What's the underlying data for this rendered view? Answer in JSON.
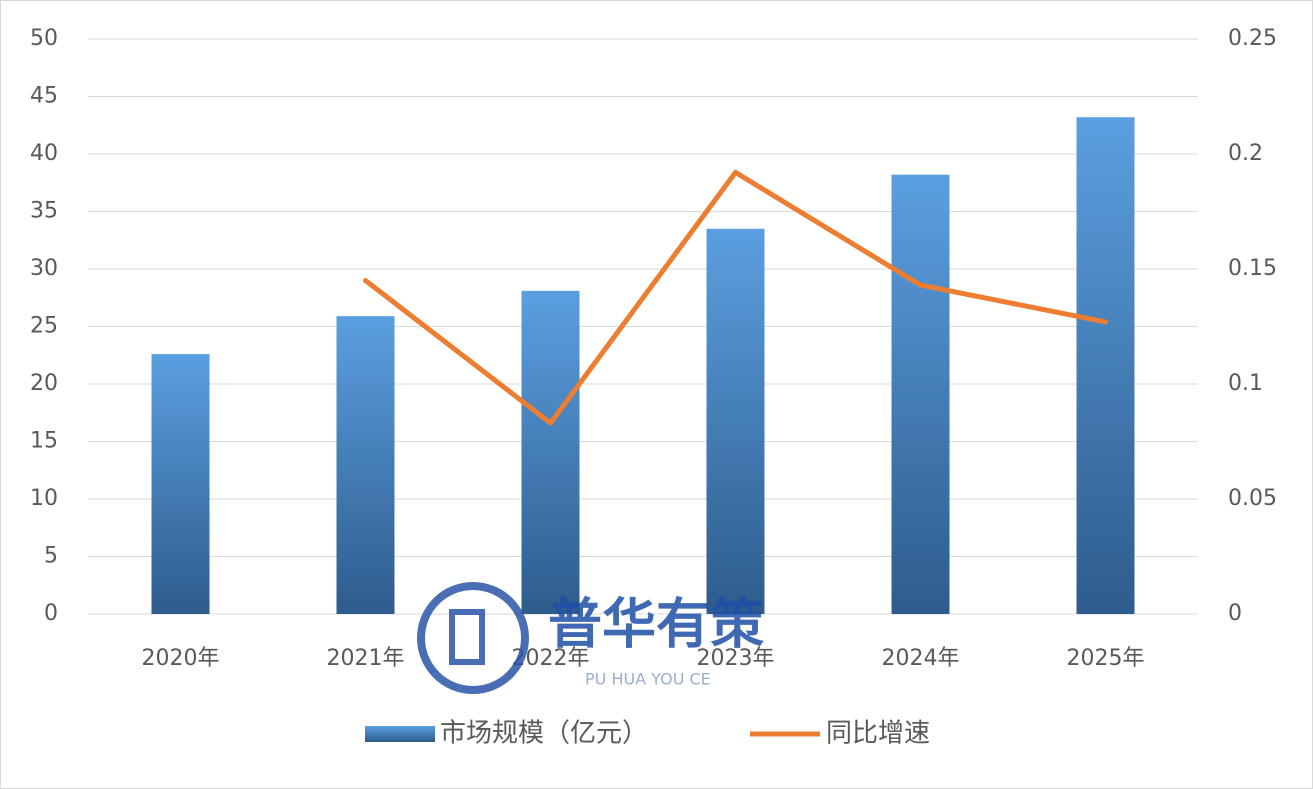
{
  "chart_data": {
    "type": "bar",
    "categories": [
      "2020年",
      "2021年",
      "2022年",
      "2023年",
      "2024年",
      "2025年"
    ],
    "series": [
      {
        "name": "市场规模（亿元）",
        "type": "bar",
        "color": "#4a8fd4",
        "values": [
          22.6,
          25.9,
          28.1,
          33.5,
          38.2,
          43.2
        ]
      },
      {
        "name": "同比增速",
        "type": "line",
        "axis": "y2",
        "color": "#ed7d31",
        "values": [
          null,
          0.145,
          0.083,
          0.192,
          0.143,
          0.127
        ]
      }
    ],
    "ylim": [
      0,
      50
    ],
    "yticks": [
      0,
      5,
      10,
      15,
      20,
      25,
      30,
      35,
      40,
      45,
      50
    ],
    "y2lim": [
      0,
      0.25
    ],
    "y2ticks": [
      0,
      0.05,
      0.1,
      0.15,
      0.2,
      0.25
    ],
    "grid": true,
    "legend": "bottom",
    "watermark": {
      "title": "普华有策",
      "subtitle": "PU HUA YOU CE"
    }
  }
}
